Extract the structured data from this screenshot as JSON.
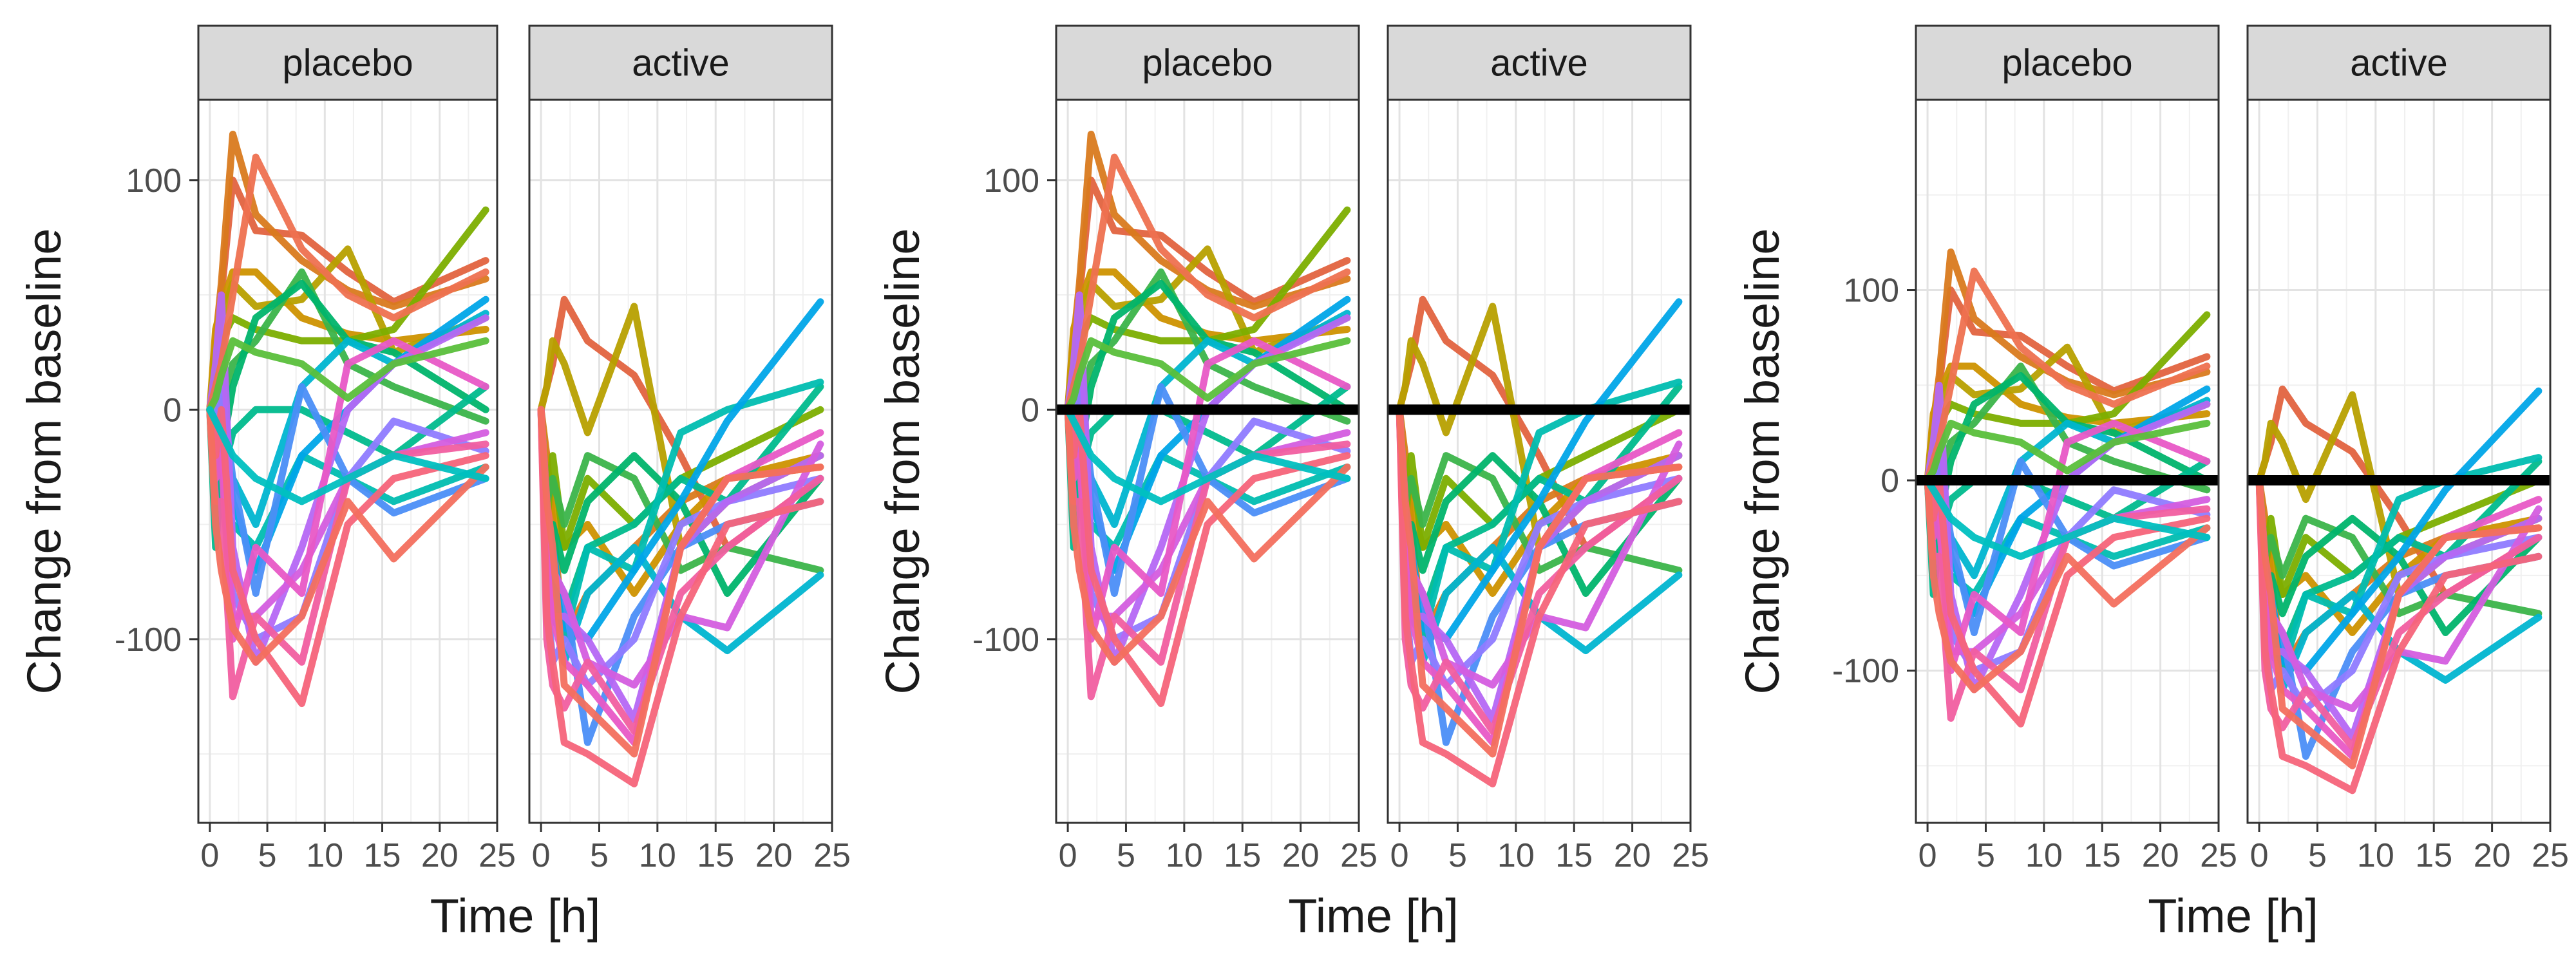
{
  "chart_data": [
    {
      "type": "line",
      "facets": [
        "placebo",
        "active"
      ],
      "xlabel": "Time [h]",
      "ylabel": "Change from baseline",
      "xlim": [
        -1,
        25
      ],
      "ylim": [
        -180,
        135
      ],
      "xticks": [
        0,
        5,
        10,
        15,
        20,
        25
      ],
      "yticks": [
        -100,
        0,
        100
      ],
      "reference_line": null,
      "grid": true
    },
    {
      "type": "line",
      "facets": [
        "placebo",
        "active"
      ],
      "xlabel": "Time [h]",
      "ylabel": "Change from baseline",
      "xlim": [
        -1,
        25
      ],
      "ylim": [
        -180,
        135
      ],
      "xticks": [
        0,
        5,
        10,
        15,
        20,
        25
      ],
      "yticks": [
        -100,
        0,
        100
      ],
      "reference_line": 0,
      "grid": true
    },
    {
      "type": "line",
      "facets": [
        "placebo",
        "active"
      ],
      "xlabel": "Time [h]",
      "ylabel": "Change from baseline",
      "xlim": [
        -1,
        25
      ],
      "ylim": [
        -180,
        200
      ],
      "xticks": [
        0,
        5,
        10,
        15,
        20,
        25
      ],
      "yticks": [
        -100,
        0,
        100
      ],
      "reference_line": 0,
      "grid": true
    }
  ],
  "times": [
    0,
    0.5,
    1,
    2,
    4,
    8,
    12,
    16,
    24
  ],
  "subjects": {
    "placebo": [
      {
        "color": "#E2633F",
        "values": [
          0,
          20,
          50,
          100,
          78,
          76,
          60,
          47,
          65
        ]
      },
      {
        "color": "#D97A1E",
        "values": [
          0,
          30,
          55,
          120,
          85,
          65,
          52,
          45,
          57
        ]
      },
      {
        "color": "#CD9200",
        "values": [
          0,
          35,
          45,
          60,
          60,
          40,
          33,
          30,
          35
        ]
      },
      {
        "color": "#B7A000",
        "values": [
          0,
          25,
          40,
          55,
          45,
          48,
          70,
          25,
          40
        ]
      },
      {
        "color": "#7CAE00",
        "values": [
          0,
          10,
          30,
          40,
          35,
          30,
          30,
          35,
          87
        ]
      },
      {
        "color": "#3BB44A",
        "values": [
          0,
          -15,
          0,
          20,
          30,
          60,
          20,
          10,
          -5
        ]
      },
      {
        "color": "#00B46B",
        "values": [
          0,
          -40,
          -20,
          10,
          40,
          55,
          30,
          25,
          0
        ]
      },
      {
        "color": "#00BB8D",
        "values": [
          0,
          -60,
          -30,
          -10,
          0,
          0,
          -10,
          -20,
          10
        ]
      },
      {
        "color": "#00BDB0",
        "values": [
          0,
          -50,
          -40,
          -50,
          -60,
          -20,
          -30,
          -40,
          -25
        ]
      },
      {
        "color": "#00B5D0",
        "values": [
          0,
          -30,
          -20,
          -30,
          -50,
          10,
          30,
          20,
          42
        ]
      },
      {
        "color": "#00A5E8",
        "values": [
          0,
          -20,
          0,
          -40,
          -70,
          -20,
          0,
          20,
          48
        ]
      },
      {
        "color": "#4B8EF7",
        "values": [
          0,
          -10,
          10,
          -30,
          -80,
          10,
          -30,
          -45,
          -30
        ]
      },
      {
        "color": "#8F7BFF",
        "values": [
          0,
          -10,
          30,
          -80,
          -100,
          -90,
          -30,
          -5,
          -18
        ]
      },
      {
        "color": "#B567F4",
        "values": [
          0,
          20,
          50,
          -60,
          -110,
          -60,
          0,
          20,
          40
        ]
      },
      {
        "color": "#D45DDF",
        "values": [
          0,
          -20,
          -10,
          -90,
          -90,
          -70,
          -30,
          -20,
          -10
        ]
      },
      {
        "color": "#E858C6",
        "values": [
          0,
          -30,
          -20,
          -100,
          -60,
          -80,
          20,
          30,
          10
        ]
      },
      {
        "color": "#F15EA0",
        "values": [
          0,
          -40,
          -40,
          -125,
          -90,
          -110,
          -30,
          -20,
          -15
        ]
      },
      {
        "color": "#F5647A",
        "values": [
          0,
          -20,
          0,
          -70,
          -100,
          -128,
          -50,
          -30,
          -20
        ]
      },
      {
        "color": "#F36F5E",
        "values": [
          0,
          -50,
          -70,
          -95,
          -110,
          -90,
          -40,
          -65,
          -25
        ]
      },
      {
        "color": "#EE7150",
        "values": [
          0,
          10,
          20,
          50,
          110,
          70,
          50,
          40,
          60
        ]
      },
      {
        "color": "#5ABF3B",
        "values": [
          0,
          5,
          15,
          30,
          25,
          20,
          5,
          20,
          30
        ]
      },
      {
        "color": "#00C0C0",
        "values": [
          0,
          -5,
          -10,
          -20,
          -30,
          -40,
          -30,
          -20,
          -30
        ]
      }
    ],
    "active": [
      {
        "color": "#E2633F",
        "values": [
          0,
          10,
          20,
          48,
          30,
          15,
          -20,
          -60,
          -30
        ]
      },
      {
        "color": "#D97A1E",
        "values": [
          0,
          -20,
          -50,
          -100,
          -80,
          -60,
          -40,
          -30,
          -25
        ]
      },
      {
        "color": "#CD9200",
        "values": [
          0,
          -30,
          -40,
          -60,
          -50,
          -80,
          -50,
          -30,
          -20
        ]
      },
      {
        "color": "#B7A000",
        "values": [
          0,
          10,
          30,
          20,
          -10,
          45,
          -60,
          -40,
          -20
        ]
      },
      {
        "color": "#7CAE00",
        "values": [
          0,
          -50,
          -20,
          -60,
          -30,
          -50,
          -30,
          -20,
          0
        ]
      },
      {
        "color": "#3BB44A",
        "values": [
          0,
          -40,
          -30,
          -50,
          -20,
          -30,
          -70,
          -60,
          -70
        ]
      },
      {
        "color": "#00B46B",
        "values": [
          0,
          -60,
          -50,
          -70,
          -40,
          -20,
          -40,
          -80,
          -30
        ]
      },
      {
        "color": "#00BB8D",
        "values": [
          0,
          -80,
          -70,
          -90,
          -60,
          -50,
          -30,
          -40,
          10
        ]
      },
      {
        "color": "#00BDB0",
        "values": [
          0,
          -70,
          -90,
          -100,
          -60,
          -70,
          -10,
          0,
          12
        ]
      },
      {
        "color": "#00B5D0",
        "values": [
          0,
          -60,
          -80,
          -110,
          -80,
          -60,
          -90,
          -105,
          -72
        ]
      },
      {
        "color": "#00A5E8",
        "values": [
          0,
          -50,
          -60,
          -95,
          -100,
          -70,
          -40,
          -5,
          47
        ]
      },
      {
        "color": "#4B8EF7",
        "values": [
          0,
          -40,
          -70,
          -80,
          -145,
          -90,
          -60,
          -50,
          -40
        ]
      },
      {
        "color": "#8F7BFF",
        "values": [
          0,
          -80,
          -110,
          -100,
          -120,
          -100,
          -50,
          -40,
          -30
        ]
      },
      {
        "color": "#B567F4",
        "values": [
          0,
          -60,
          -90,
          -90,
          -100,
          -135,
          -60,
          -40,
          -20
        ]
      },
      {
        "color": "#D45DDF",
        "values": [
          0,
          -50,
          -70,
          -80,
          -110,
          -120,
          -90,
          -95,
          -15
        ]
      },
      {
        "color": "#E858C6",
        "values": [
          0,
          -70,
          -90,
          -110,
          -120,
          -145,
          -60,
          -30,
          -10
        ]
      },
      {
        "color": "#F15EA0",
        "values": [
          0,
          -100,
          -120,
          -130,
          -110,
          -140,
          -80,
          -60,
          -30
        ]
      },
      {
        "color": "#F5647A",
        "values": [
          0,
          -90,
          -110,
          -145,
          -150,
          -163,
          -90,
          -50,
          -40
        ]
      },
      {
        "color": "#F36F5E",
        "values": [
          0,
          -40,
          -60,
          -120,
          -130,
          -150,
          -60,
          -30,
          -25
        ]
      }
    ]
  }
}
